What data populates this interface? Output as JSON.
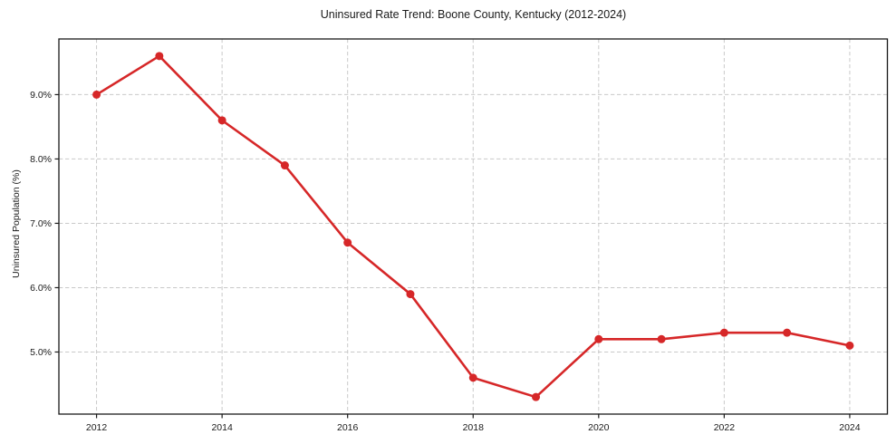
{
  "page": {
    "background_color": "#ffffff",
    "text_color": "#1a1a1a"
  },
  "chart_data": {
    "type": "line",
    "title": "Uninsured Rate Trend: Boone County, Kentucky (2012-2024)",
    "xlabel": "",
    "ylabel": "Uninsured Population (%)",
    "x": [
      2012,
      2013,
      2014,
      2015,
      2016,
      2017,
      2018,
      2019,
      2020,
      2021,
      2022,
      2023,
      2024
    ],
    "series": [
      {
        "name": "Uninsured Population (%)",
        "values": [
          9.0,
          9.6,
          8.6,
          7.9,
          6.7,
          5.9,
          4.6,
          4.3,
          5.2,
          5.2,
          5.3,
          5.3,
          5.1
        ]
      }
    ],
    "xticks": [
      2012,
      2014,
      2016,
      2018,
      2020,
      2022,
      2024
    ],
    "xtick_labels": [
      "2012",
      "2014",
      "2016",
      "2018",
      "2020",
      "2022",
      "2024"
    ],
    "yticks": [
      5.0,
      6.0,
      7.0,
      8.0,
      9.0
    ],
    "ytick_labels": [
      "5.0%",
      "6.0%",
      "7.0%",
      "8.0%",
      "9.0%"
    ],
    "xlim": [
      2011.4,
      2024.6
    ],
    "ylim": [
      4.035,
      9.865
    ],
    "grid": true,
    "grid_style": "dashed",
    "legend": "none",
    "line_color": "#d62728",
    "marker": "circle",
    "grid_color": "#c9c9c9",
    "spine_color": "#1a1a1a",
    "tick_text_color": "#1a1a1a"
  }
}
